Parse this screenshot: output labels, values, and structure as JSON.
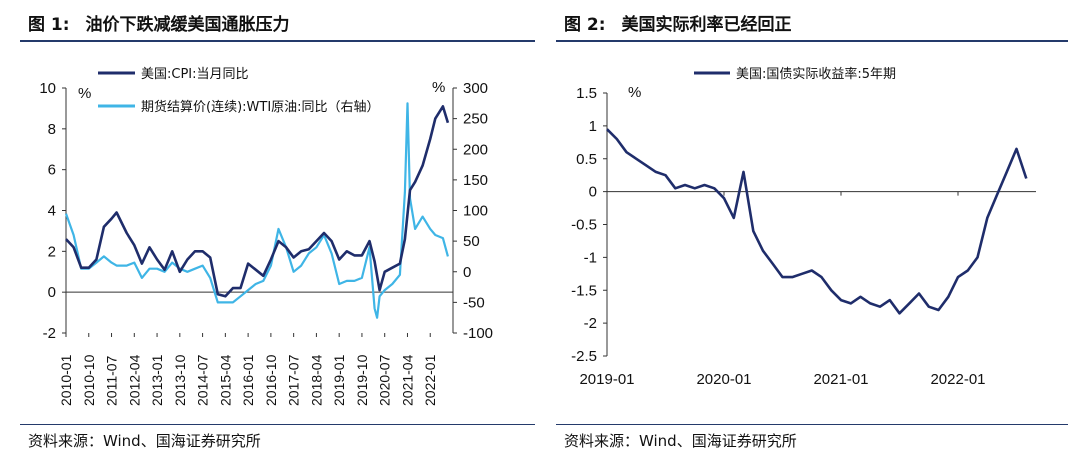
{
  "panels": {
    "left": {
      "fig_num": "图 1:",
      "title": "油价下跌减缓美国通胀压力",
      "source": "资料来源：Wind、国海证券研究所"
    },
    "right": {
      "fig_num": "图 2:",
      "title": "美国实际利率已经回正",
      "source": "资料来源：Wind、国海证券研究所"
    }
  },
  "colors": {
    "cpi": "#1f2d6b",
    "wti": "#3fb5e6",
    "real_rate": "#1f2d6b",
    "rule": "#243a6b"
  },
  "chart_data": [
    {
      "type": "line",
      "title": "油价下跌减缓美国通胀压力",
      "y_unit_left": "%",
      "y_unit_right": "%",
      "ylim_left": [
        -2,
        10
      ],
      "ylim_right": [
        -100,
        300
      ],
      "yticks_left": [
        "10",
        "8",
        "6",
        "4",
        "2",
        "0",
        "-2"
      ],
      "yticks_right": [
        "300",
        "250",
        "200",
        "150",
        "100",
        "50",
        "0",
        "-50",
        "-100"
      ],
      "x_tick_labels": [
        "2010-01",
        "2010-10",
        "2011-07",
        "2012-04",
        "2013-01",
        "2013-10",
        "2014-07",
        "2015-04",
        "2016-01",
        "2016-10",
        "2017-07",
        "2018-04",
        "2019-01",
        "2019-10",
        "2020-07",
        "2021-04",
        "2022-01"
      ],
      "grid": false,
      "legend": "top-left",
      "series": [
        {
          "name": "美国:CPI:当月同比",
          "axis": "left",
          "x": [
            "2010-01",
            "2010-04",
            "2010-07",
            "2010-10",
            "2011-01",
            "2011-04",
            "2011-07",
            "2011-09",
            "2012-01",
            "2012-04",
            "2012-07",
            "2012-10",
            "2013-01",
            "2013-04",
            "2013-07",
            "2013-10",
            "2014-01",
            "2014-04",
            "2014-07",
            "2014-10",
            "2015-01",
            "2015-04",
            "2015-07",
            "2015-10",
            "2016-01",
            "2016-04",
            "2016-07",
            "2016-10",
            "2017-01",
            "2017-04",
            "2017-07",
            "2017-10",
            "2018-01",
            "2018-04",
            "2018-07",
            "2018-10",
            "2019-01",
            "2019-04",
            "2019-07",
            "2019-10",
            "2020-01",
            "2020-03",
            "2020-05",
            "2020-07",
            "2020-10",
            "2021-01",
            "2021-03",
            "2021-05",
            "2021-07",
            "2021-10",
            "2022-01",
            "2022-03",
            "2022-06",
            "2022-08"
          ],
          "values": [
            2.6,
            2.2,
            1.2,
            1.2,
            1.6,
            3.2,
            3.6,
            3.9,
            2.9,
            2.3,
            1.4,
            2.2,
            1.6,
            1.1,
            2.0,
            1.0,
            1.6,
            2.0,
            2.0,
            1.7,
            -0.1,
            -0.2,
            0.2,
            0.2,
            1.4,
            1.1,
            0.8,
            1.6,
            2.5,
            2.2,
            1.7,
            2.0,
            2.1,
            2.5,
            2.9,
            2.5,
            1.6,
            2.0,
            1.8,
            1.8,
            2.5,
            1.5,
            0.1,
            1.0,
            1.2,
            1.4,
            2.6,
            5.0,
            5.4,
            6.2,
            7.5,
            8.5,
            9.1,
            8.3
          ]
        },
        {
          "name": "期货结算价(连续):WTI原油:同比（右轴）",
          "axis": "right",
          "x": [
            "2010-01",
            "2010-04",
            "2010-07",
            "2010-10",
            "2011-01",
            "2011-04",
            "2011-07",
            "2011-09",
            "2012-01",
            "2012-04",
            "2012-07",
            "2012-10",
            "2013-01",
            "2013-04",
            "2013-07",
            "2013-10",
            "2014-01",
            "2014-04",
            "2014-07",
            "2014-10",
            "2015-01",
            "2015-04",
            "2015-07",
            "2015-10",
            "2016-01",
            "2016-04",
            "2016-07",
            "2016-10",
            "2017-01",
            "2017-04",
            "2017-07",
            "2017-10",
            "2018-01",
            "2018-04",
            "2018-07",
            "2018-10",
            "2019-01",
            "2019-04",
            "2019-07",
            "2019-10",
            "2020-01",
            "2020-03",
            "2020-04",
            "2020-05",
            "2020-07",
            "2020-10",
            "2021-01",
            "2021-03",
            "2021-04",
            "2021-05",
            "2021-07",
            "2021-10",
            "2022-01",
            "2022-03",
            "2022-06",
            "2022-08"
          ],
          "values": [
            95,
            60,
            5,
            5,
            15,
            25,
            15,
            10,
            10,
            15,
            -10,
            5,
            5,
            0,
            15,
            5,
            0,
            5,
            10,
            -10,
            -50,
            -50,
            -50,
            -40,
            -30,
            -20,
            -15,
            10,
            70,
            40,
            0,
            10,
            30,
            40,
            60,
            30,
            -20,
            -15,
            -15,
            -10,
            40,
            -60,
            -75,
            -40,
            -30,
            -20,
            -5,
            130,
            275,
            120,
            70,
            90,
            70,
            60,
            55,
            25
          ]
        }
      ]
    },
    {
      "type": "line",
      "title": "美国实际利率已经回正",
      "y_unit_left": "%",
      "ylim": [
        -2.5,
        1.5
      ],
      "yticks": [
        "1.5",
        "1",
        "0.5",
        "0",
        "-0.5",
        "-1",
        "-1.5",
        "-2",
        "-2.5"
      ],
      "x_tick_labels": [
        "2019-01",
        "2020-01",
        "2021-01",
        "2022-01"
      ],
      "grid": false,
      "legend": "top-left",
      "series": [
        {
          "name": "美国:国债实际收益率:5年期",
          "x": [
            "2019-01",
            "2019-02",
            "2019-03",
            "2019-04",
            "2019-05",
            "2019-06",
            "2019-07",
            "2019-08",
            "2019-09",
            "2019-10",
            "2019-11",
            "2019-12",
            "2020-01",
            "2020-02",
            "2020-03",
            "2020-04",
            "2020-05",
            "2020-06",
            "2020-07",
            "2020-08",
            "2020-09",
            "2020-10",
            "2020-11",
            "2020-12",
            "2021-01",
            "2021-02",
            "2021-03",
            "2021-04",
            "2021-05",
            "2021-06",
            "2021-07",
            "2021-08",
            "2021-09",
            "2021-10",
            "2021-11",
            "2021-12",
            "2022-01",
            "2022-02",
            "2022-03",
            "2022-04",
            "2022-05",
            "2022-06",
            "2022-07",
            "2022-08"
          ],
          "values": [
            0.95,
            0.8,
            0.6,
            0.5,
            0.4,
            0.3,
            0.25,
            0.05,
            0.1,
            0.05,
            0.1,
            0.05,
            -0.1,
            -0.4,
            0.3,
            -0.6,
            -0.9,
            -1.1,
            -1.3,
            -1.3,
            -1.25,
            -1.2,
            -1.3,
            -1.5,
            -1.65,
            -1.7,
            -1.6,
            -1.7,
            -1.75,
            -1.65,
            -1.85,
            -1.7,
            -1.55,
            -1.75,
            -1.8,
            -1.6,
            -1.3,
            -1.2,
            -1.0,
            -0.4,
            -0.05,
            0.3,
            0.65,
            0.2
          ]
        }
      ]
    }
  ]
}
